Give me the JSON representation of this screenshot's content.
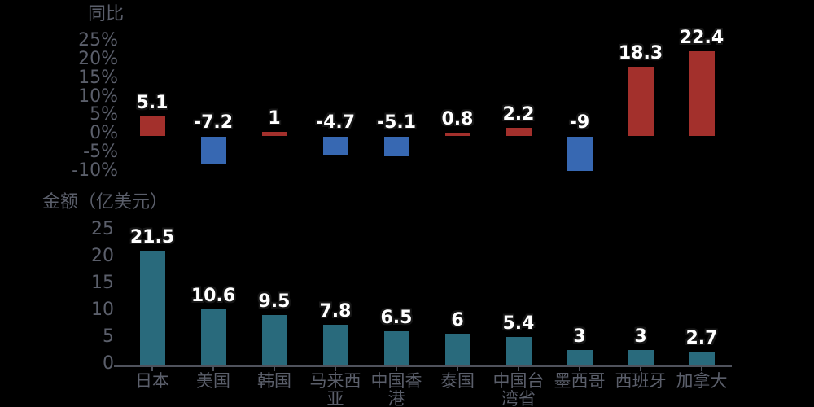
{
  "page": {
    "background": "#000000"
  },
  "theme": {
    "text_gray": "#5B5F6B",
    "axis_gray": "#4F525C",
    "value_label_color": "#FFFFFF",
    "value_label_outline": "#161616",
    "positive_bar_red": "#A3302C",
    "negative_bar_blue": "#3768B2",
    "amount_bar_teal": "#296A7C"
  },
  "chart_data": [
    {
      "type": "bar",
      "title": "同比",
      "categories": [
        "日本",
        "美国",
        "韩国",
        "马来西亚",
        "中国香港",
        "泰国",
        "中国台湾省",
        "墨西哥",
        "西班牙",
        "加拿大"
      ],
      "values": [
        5.1,
        -7.2,
        1,
        -4.7,
        -5.1,
        0.8,
        2.2,
        -9,
        18.3,
        22.4
      ],
      "value_labels": [
        "5.1",
        "-7.2",
        "1",
        "-4.7",
        "-5.1",
        "0.8",
        "2.2",
        "-9",
        "18.3",
        "22.4"
      ],
      "yticks": [
        {
          "value": 25,
          "label": "25%"
        },
        {
          "value": 20,
          "label": "20%"
        },
        {
          "value": 15,
          "label": "15%"
        },
        {
          "value": 10,
          "label": "10%"
        },
        {
          "value": 5,
          "label": "5%"
        },
        {
          "value": 0,
          "label": "0%"
        },
        {
          "value": -5,
          "label": "-5%"
        },
        {
          "value": -10,
          "label": "-10%"
        }
      ],
      "ylim": [
        -10,
        25
      ],
      "ylabel": "",
      "grid": false,
      "legend": "none",
      "x_axis_labels_shown": false,
      "bar_color_rule": "red if positive, blue if negative",
      "positive_color": "#A3302C",
      "negative_color": "#3768B2"
    },
    {
      "type": "bar",
      "title": "金额（亿美元）",
      "categories": [
        "日本",
        "美国",
        "韩国",
        "马来西亚",
        "中国香港",
        "泰国",
        "中国台湾省",
        "墨西哥",
        "西班牙",
        "加拿大"
      ],
      "category_label_lines": [
        [
          "日本"
        ],
        [
          "美国"
        ],
        [
          "韩国"
        ],
        [
          "马来西",
          "亚"
        ],
        [
          "中国香",
          "港"
        ],
        [
          "泰国"
        ],
        [
          "中国台",
          "湾省"
        ],
        [
          "墨西哥"
        ],
        [
          "西班牙"
        ],
        [
          "加拿大"
        ]
      ],
      "values": [
        21.5,
        10.6,
        9.5,
        7.8,
        6.5,
        6,
        5.4,
        3,
        3,
        2.7
      ],
      "value_labels": [
        "21.5",
        "10.6",
        "9.5",
        "7.8",
        "6.5",
        "6",
        "5.4",
        "3",
        "3",
        "2.7"
      ],
      "yticks": [
        {
          "value": 25,
          "label": "25"
        },
        {
          "value": 20,
          "label": "20"
        },
        {
          "value": 15,
          "label": "15"
        },
        {
          "value": 10,
          "label": "10"
        },
        {
          "value": 5,
          "label": "5"
        },
        {
          "value": 0,
          "label": "0"
        }
      ],
      "ylim": [
        0,
        25
      ],
      "ylabel": "",
      "grid": false,
      "legend": "none",
      "x_axis_line_shown": true,
      "bar_color": "#296A7C"
    }
  ]
}
